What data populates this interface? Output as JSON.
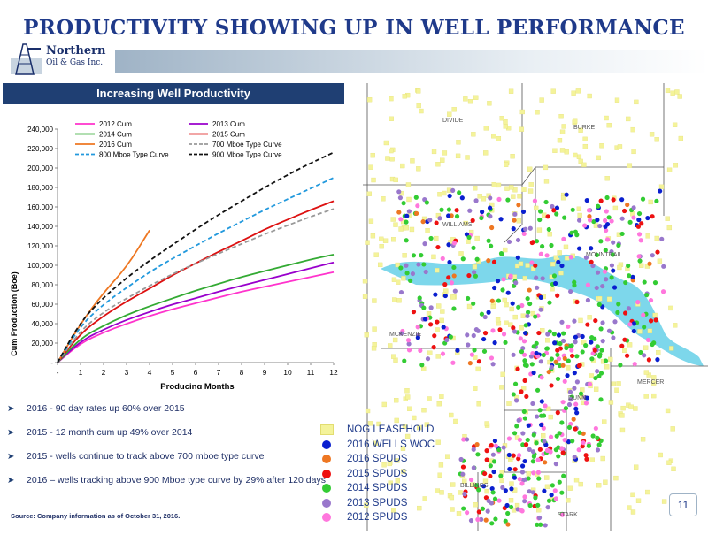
{
  "slide": {
    "title": "PRODUCTIVITY SHOWING UP IN WELL PERFORMANCE",
    "logo_line1": "Northern",
    "logo_line2": "Oil & Gas Inc.",
    "page_number": "11",
    "source": "Source:  Company information as of October 31, 2016."
  },
  "bullets": [
    "2016 - 90 day rates up 60% over 2015",
    "2015 - 12 month cum up 49% over 2014",
    "2015 - wells continue to track above 700 mboe type curve",
    "2016 – wells tracking above 900 Mboe type curve by 29% after 120 days"
  ],
  "chart_data": {
    "type": "line",
    "title": "Increasing Well Productivity",
    "xlabel": "Producing Months",
    "ylabel": "Cum Production (Boe)",
    "xlim": [
      0,
      12
    ],
    "ylim": [
      0,
      240000
    ],
    "x_ticks": [
      "-",
      "1",
      "2",
      "3",
      "4",
      "5",
      "6",
      "7",
      "8",
      "9",
      "10",
      "11",
      "12"
    ],
    "y_ticks": [
      "-",
      "20,000",
      "40,000",
      "60,000",
      "80,000",
      "100,000",
      "120,000",
      "140,000",
      "160,000",
      "180,000",
      "200,000",
      "220,000",
      "240,000"
    ],
    "legend_position": "top-left",
    "series": [
      {
        "name": "2012 Cum",
        "color": "#ff33cc",
        "dash": "solid",
        "x": [
          0,
          1,
          2,
          3,
          4,
          5,
          6,
          7,
          8,
          9,
          10,
          11,
          12
        ],
        "y": [
          0,
          20000,
          31000,
          40000,
          48000,
          55000,
          61000,
          67000,
          73000,
          78000,
          83000,
          88000,
          93000
        ]
      },
      {
        "name": "2013 Cum",
        "color": "#9900cc",
        "dash": "solid",
        "x": [
          0,
          1,
          2,
          3,
          4,
          5,
          6,
          7,
          8,
          9,
          10,
          11,
          12
        ],
        "y": [
          0,
          22000,
          34000,
          44000,
          52000,
          60000,
          66000,
          73000,
          79000,
          85000,
          91000,
          97000,
          103000
        ]
      },
      {
        "name": "2014 Cum",
        "color": "#33aa33",
        "dash": "solid",
        "x": [
          0,
          1,
          2,
          3,
          4,
          5,
          6,
          7,
          8,
          9,
          10,
          11,
          12
        ],
        "y": [
          0,
          25000,
          38000,
          49000,
          58000,
          66000,
          74000,
          81000,
          88000,
          94000,
          100000,
          106000,
          111000
        ]
      },
      {
        "name": "2015 Cum",
        "color": "#dd1111",
        "dash": "solid",
        "x": [
          0,
          1,
          2,
          3,
          4,
          5,
          6,
          7,
          8,
          9,
          10,
          11,
          12
        ],
        "y": [
          0,
          30000,
          48000,
          63000,
          76000,
          90000,
          102000,
          114000,
          125000,
          137000,
          147000,
          157000,
          166000
        ]
      },
      {
        "name": "2016 Cum",
        "color": "#ee7722",
        "dash": "solid",
        "x": [
          0,
          1,
          2,
          3,
          4
        ],
        "y": [
          0,
          40000,
          72000,
          98000,
          136000
        ]
      },
      {
        "name": "700 Mboe Type Curve",
        "color": "#999999",
        "dash": "dashed",
        "x": [
          0,
          1,
          2,
          3,
          4,
          5,
          6,
          7,
          8,
          9,
          10,
          11,
          12
        ],
        "y": [
          0,
          33000,
          52000,
          66000,
          79000,
          91000,
          102000,
          112000,
          122000,
          132000,
          141000,
          150000,
          158000
        ]
      },
      {
        "name": "800 Mboe Type Curve",
        "color": "#2299dd",
        "dash": "dashed",
        "x": [
          0,
          1,
          2,
          3,
          4,
          5,
          6,
          7,
          8,
          9,
          10,
          11,
          12
        ],
        "y": [
          0,
          38000,
          60000,
          77000,
          93000,
          107000,
          120000,
          133000,
          145000,
          157000,
          168000,
          179000,
          190000
        ]
      },
      {
        "name": "900 Mboe Type Curve",
        "color": "#111111",
        "dash": "dashed",
        "x": [
          0,
          1,
          2,
          3,
          4,
          5,
          6,
          7,
          8,
          9,
          10,
          11,
          12
        ],
        "y": [
          0,
          42000,
          67000,
          87000,
          105000,
          121000,
          137000,
          152000,
          166000,
          180000,
          193000,
          205000,
          216000
        ]
      }
    ]
  },
  "map": {
    "counties": [
      "DIVIDE",
      "BURKE",
      "WILLIAMS",
      "MOUNTRAIL",
      "MCKENZIE",
      "DUNN",
      "MERCER",
      "BILLINGS",
      "STARK"
    ],
    "legend": [
      {
        "label": "NOG LEASEHOLD",
        "color": "#f4f39a",
        "shape": "square"
      },
      {
        "label": "2016 WELLS WOC",
        "color": "#0a1fcf",
        "shape": "dot"
      },
      {
        "label": "2016 SPUDS",
        "color": "#ee7722",
        "shape": "dot"
      },
      {
        "label": "2015 SPUDS",
        "color": "#ee1111",
        "shape": "dot"
      },
      {
        "label": "2014 SPUDS",
        "color": "#33cc33",
        "shape": "dot"
      },
      {
        "label": "2013 SPUDS",
        "color": "#9977cc",
        "shape": "dot"
      },
      {
        "label": "2012 SPUDS",
        "color": "#ff77dd",
        "shape": "dot"
      }
    ]
  }
}
